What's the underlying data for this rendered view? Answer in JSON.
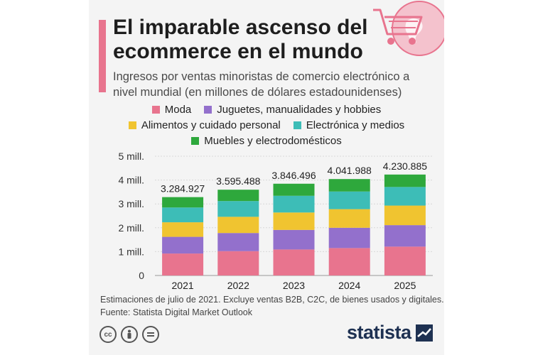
{
  "title": "El imparable ascenso del ecommerce en el mundo",
  "subtitle": "Ingresos por ventas minoristas de comercio electrónico a nivel mundial (en millones de dólares estadounidenses)",
  "footnote": {
    "line1": "Estimaciones de julio de 2021. Excluye ventas B2B, C2C, de bienes usados y digitales.",
    "line2": "Fuente: Statista Digital Market Outlook"
  },
  "brand": "statista",
  "license_icons": [
    "cc-icon",
    "attribution-icon",
    "no-derivatives-icon"
  ],
  "colors": {
    "accent": "#e8748e",
    "brand": "#1e3152"
  },
  "chart_data": {
    "type": "bar",
    "stacked": true,
    "categories": [
      "2021",
      "2022",
      "2023",
      "2024",
      "2025"
    ],
    "totals_labels": [
      "3.284.927",
      "3.595.488",
      "3.846.496",
      "4.041.988",
      "4.230.885"
    ],
    "ylim": [
      0,
      5000000
    ],
    "yticks": [
      0,
      1000000,
      2000000,
      3000000,
      4000000,
      5000000
    ],
    "ytick_labels": [
      "0",
      "1 mill.",
      "2 mill.",
      "3 mill.",
      "4 mill.",
      "5 mill."
    ],
    "grid": true,
    "legend_position": "top",
    "series": [
      {
        "name": "Moda",
        "color": "#e8748e",
        "values": [
          920000,
          1020000,
          1090000,
          1150000,
          1210000
        ]
      },
      {
        "name": "Juguetes, manualidades y hobbies",
        "color": "#9370cc",
        "values": [
          700000,
          760000,
          820000,
          850000,
          900000
        ]
      },
      {
        "name": "Alimentos y cuidado personal",
        "color": "#f0c430",
        "values": [
          610000,
          680000,
          730000,
          780000,
          820000
        ]
      },
      {
        "name": "Electrónica y medios",
        "color": "#3dbdb7",
        "values": [
          620000,
          660000,
          700000,
          740000,
          780000
        ]
      },
      {
        "name": "Muebles y electrodomésticos",
        "color": "#2ea83c",
        "values": [
          434927,
          475488,
          506496,
          521988,
          520885
        ]
      }
    ]
  }
}
